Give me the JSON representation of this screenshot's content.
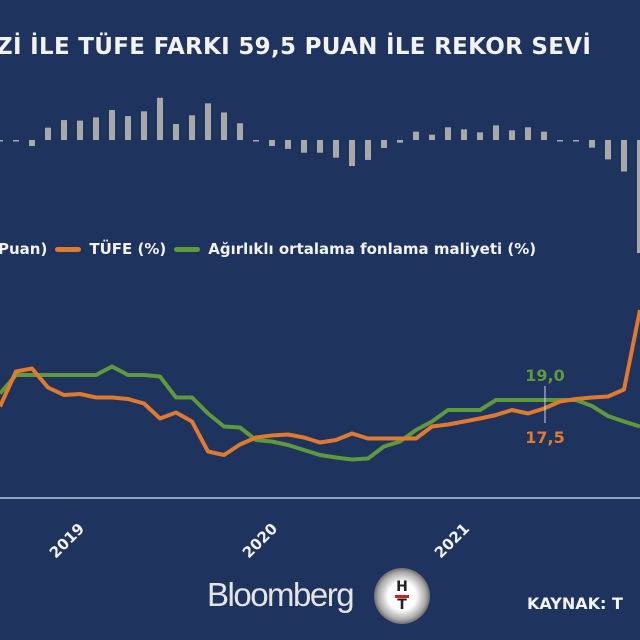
{
  "title": "Zİ İLE TÜFE FARKI 59,5 PUAN İLE REKOR SEVİ",
  "legend": {
    "spread_label": "Puan)",
    "cpi_label": "TÜFE (%)",
    "funding_label": "Ağırlıklı ortalama fonlama maliyeti (%)"
  },
  "footer": {
    "brand": "Bloomberg",
    "logo_text": "HT",
    "source": "KAYNAK: T"
  },
  "colors": {
    "background": "#1e335e",
    "cpi": "#e07a2e",
    "funding": "#5e9a3c",
    "spread": "#a8a8a8",
    "axis": "#8fa3c4"
  },
  "chart_data": [
    {
      "type": "bar",
      "series": [
        {
          "name": "Puan",
          "values": [
            -0.4,
            -0.5,
            -3.2,
            6.5,
            10.5,
            10.2,
            11.9,
            15.8,
            12.6,
            15.1,
            22.2,
            8.4,
            13.0,
            19.3,
            14.5,
            8.8,
            -0.4,
            -3.2,
            -4.7,
            -6.7,
            -6.7,
            -9.3,
            -13.7,
            -10.5,
            -4.2,
            -1.4,
            4.4,
            2.8,
            6.7,
            5.6,
            4.0,
            7.7,
            5.1,
            6.7,
            4.4,
            -0.2,
            -0.4,
            -4.0,
            -10.2,
            -16.6,
            -59.5
          ]
        }
      ],
      "x_start": "2018-08",
      "x_end": "2021-12",
      "frequency": "monthly"
    },
    {
      "type": "line",
      "x_start": "2018-08",
      "x_end": "2021-12",
      "frequency": "monthly",
      "x_tick_labels": [
        "2019",
        "2020",
        "2021"
      ],
      "grid": false,
      "legend_placement": "top",
      "series": [
        {
          "name": "TÜFE (%)",
          "values": [
            17.7,
            24.7,
            25.3,
            21.5,
            20.0,
            20.2,
            19.5,
            19.5,
            19.2,
            18.3,
            15.3,
            16.5,
            14.7,
            8.7,
            8.0,
            10.1,
            11.5,
            11.9,
            12.1,
            11.5,
            10.5,
            11.0,
            12.3,
            11.3,
            11.3,
            11.3,
            11.3,
            13.7,
            14.1,
            14.7,
            15.3,
            16.0,
            17.0,
            16.3,
            17.3,
            18.7,
            19.2,
            19.5,
            19.7,
            21.1,
            37.0
          ]
        },
        {
          "name": "Ağırlıklı ortalama fonlama maliyeti (%)",
          "values": [
            20.3,
            24.0,
            24.0,
            24.0,
            24.0,
            24.0,
            24.0,
            25.7,
            24.0,
            24.0,
            23.7,
            19.5,
            19.5,
            16.3,
            13.7,
            13.5,
            11.0,
            10.7,
            10.0,
            9.0,
            8.0,
            7.5,
            7.1,
            7.3,
            9.7,
            10.7,
            13.0,
            14.7,
            17.0,
            17.0,
            17.0,
            19.0,
            19.0,
            19.0,
            19.0,
            19.0,
            19.0,
            17.8,
            15.8,
            14.7,
            13.7
          ]
        }
      ],
      "annotations": [
        {
          "text": "19,0",
          "series": "Ağırlıklı ortalama fonlama maliyeti (%)"
        },
        {
          "text": "17,5",
          "series": "TÜFE (%)"
        }
      ]
    }
  ]
}
